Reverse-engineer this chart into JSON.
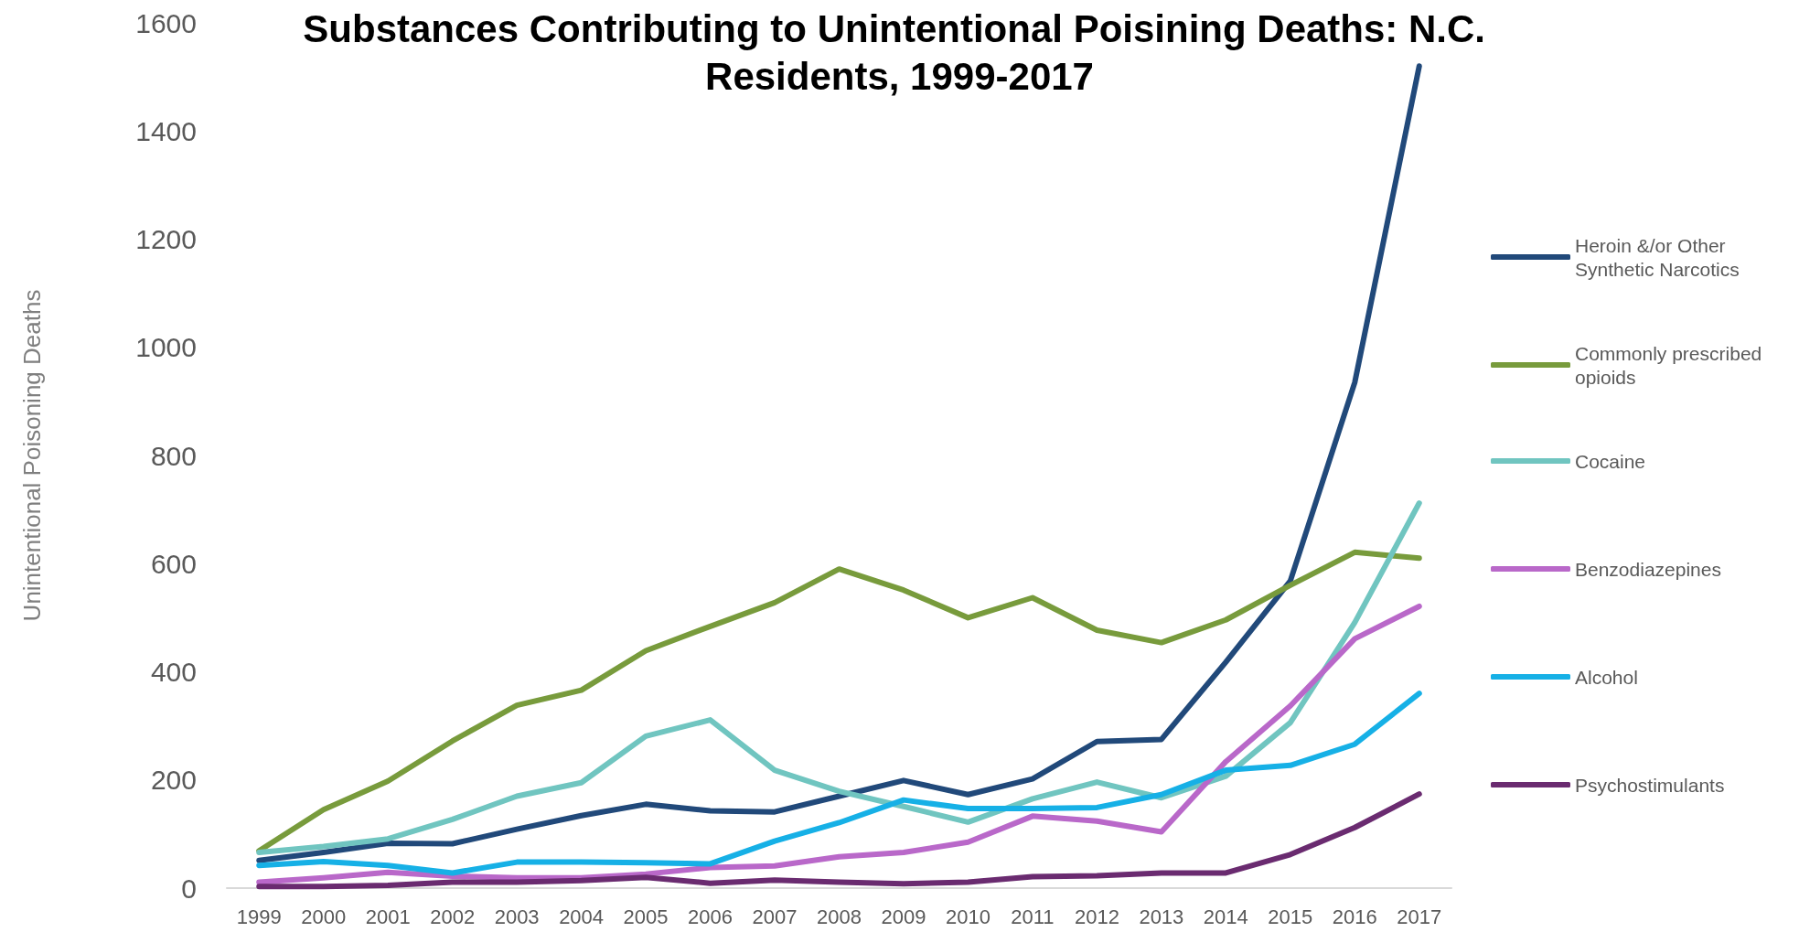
{
  "chart_data": {
    "type": "line",
    "title": "Substances Contributing to Unintentional Poisining Deaths: N.C. Residents, 1999-2017",
    "ylabel": "Unintentional Poisoning Deaths",
    "categories": [
      "1999",
      "2000",
      "2001",
      "2002",
      "2003",
      "2004",
      "2005",
      "2006",
      "2007",
      "2008",
      "2009",
      "2010",
      "2011",
      "2012",
      "2013",
      "2014",
      "2015",
      "2016",
      "2017"
    ],
    "ylim": [
      0,
      1600
    ],
    "yticks": [
      0,
      200,
      400,
      600,
      800,
      1000,
      1200,
      1400,
      1600
    ],
    "grid": false,
    "legend": "right",
    "marker": "none",
    "line_style": "solid",
    "series": [
      {
        "name": "Heroin &/or Other Synthetic Narcotics",
        "color": "#21497a",
        "values": [
          51,
          66,
          83,
          82,
          109,
          134,
          155,
          143,
          141,
          170,
          199,
          173,
          202,
          271,
          275,
          418,
          568,
          935,
          1520
        ]
      },
      {
        "name": "Commonly prescribed opioids",
        "color": "#789b3c",
        "values": [
          69,
          145,
          198,
          272,
          338,
          366,
          439,
          484,
          528,
          590,
          551,
          500,
          537,
          477,
          454,
          496,
          560,
          621,
          610
        ]
      },
      {
        "name": "Cocaine",
        "color": "#70c5c0",
        "values": [
          66,
          77,
          91,
          127,
          170,
          195,
          281,
          311,
          218,
          179,
          151,
          122,
          165,
          196,
          167,
          207,
          306,
          491,
          712
        ]
      },
      {
        "name": "Benzodiazepines",
        "color": "#b968c9",
        "values": [
          11,
          19,
          29,
          22,
          19,
          19,
          26,
          38,
          41,
          58,
          66,
          85,
          133,
          124,
          104,
          234,
          337,
          461,
          521
        ]
      },
      {
        "name": "Alcohol",
        "color": "#16b0e6",
        "values": [
          42,
          49,
          42,
          28,
          48,
          48,
          47,
          45,
          87,
          121,
          163,
          147,
          147,
          149,
          173,
          218,
          227,
          266,
          360
        ]
      },
      {
        "name": "Psychostimulants",
        "color": "#6a2b70",
        "values": [
          3,
          3,
          5,
          11,
          11,
          14,
          20,
          9,
          15,
          11,
          8,
          11,
          21,
          23,
          28,
          28,
          62,
          112,
          174
        ]
      }
    ]
  }
}
